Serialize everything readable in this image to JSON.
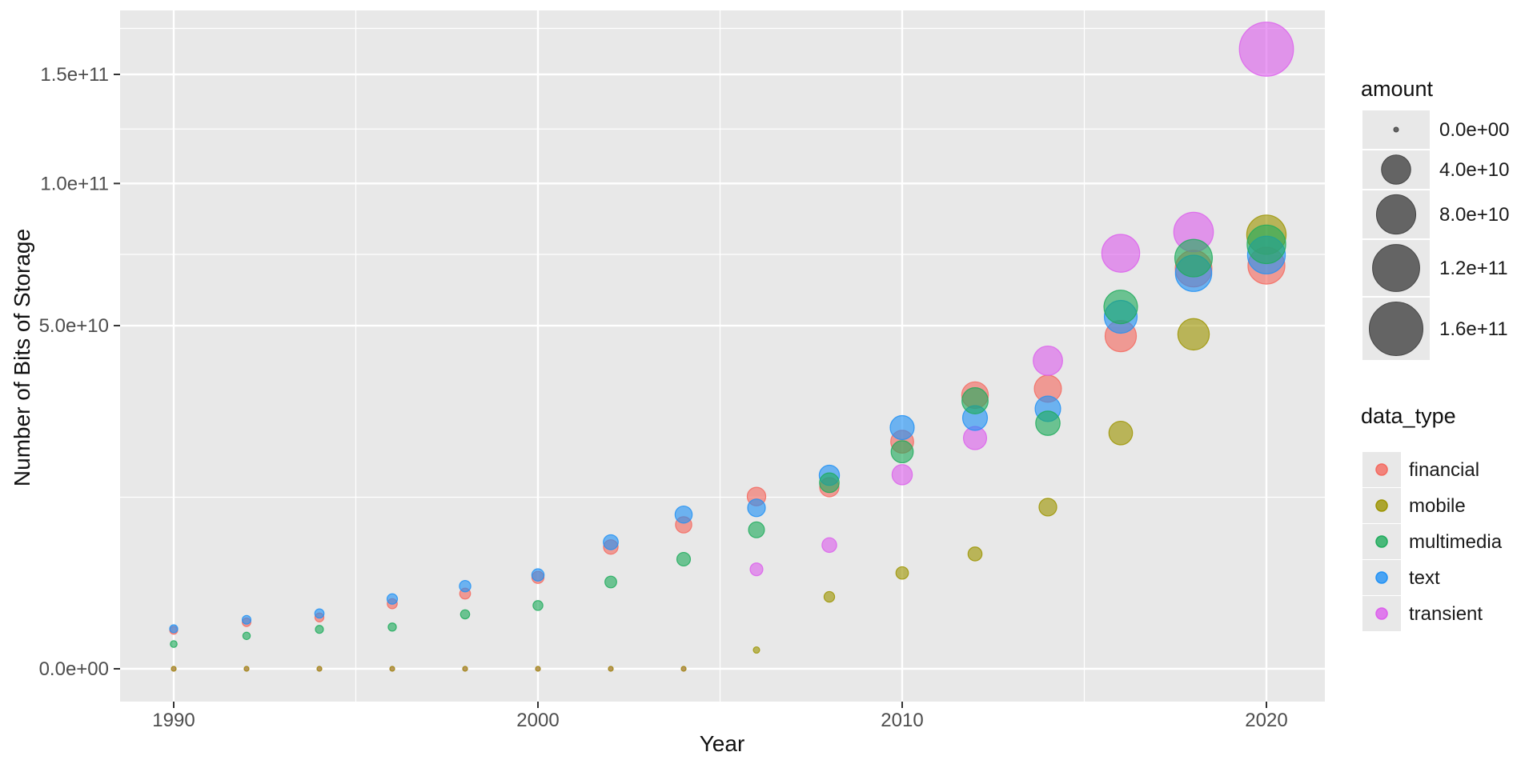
{
  "chart_data": {
    "type": "bubble",
    "xlabel": "Year",
    "ylabel": "Number of Bits of Storage",
    "y_scale": "sqrt",
    "x": [
      1990,
      1992,
      1994,
      1996,
      1998,
      2000,
      2002,
      2004,
      2006,
      2008,
      2010,
      2012,
      2014,
      2016,
      2018,
      2020
    ],
    "x_ticks": [
      {
        "value": 1990,
        "label": "1990"
      },
      {
        "value": 2000,
        "label": "2000"
      },
      {
        "value": 2010,
        "label": "2010"
      },
      {
        "value": 2020,
        "label": "2020"
      }
    ],
    "x_minor": [
      1995,
      2005,
      2015
    ],
    "y_ticks": [
      {
        "value": 0,
        "label": "0.0e+00"
      },
      {
        "value": 50000000000.0,
        "label": "5.0e+10"
      },
      {
        "value": 100000000000.0,
        "label": "1.0e+11"
      },
      {
        "value": 150000000000.0,
        "label": "1.5e+11"
      }
    ],
    "y_minor_values": [
      12500000000.0,
      72900000000.0,
      123700000000.0,
      174100000000.0
    ],
    "ylim": [
      0,
      185000000000.0
    ],
    "grid": true,
    "panel_color": "#E8E8E8",
    "grid_color": "#FFFFFF",
    "series": [
      {
        "name": "financial",
        "color": "#F4695F",
        "values": [
          630000000.0,
          920000000.0,
          1120000000.0,
          1800000000.0,
          2400000000.0,
          3550000000.0,
          6300000000.0,
          8800000000.0,
          12600000000.0,
          14000000000.0,
          21900000000.0,
          31800000000.0,
          33300000000.0,
          47000000000.0,
          68000000000.0,
          69000000000.0
        ]
      },
      {
        "name": "mobile",
        "color": "#9C9400",
        "values": [
          0,
          0,
          0,
          0,
          0,
          0,
          0,
          0,
          150000000.0,
          2200000000.0,
          3900000000.0,
          5600000000.0,
          11100000000.0,
          23600000000.0,
          47500000000.0,
          80000000000.0
        ]
      },
      {
        "name": "multimedia",
        "color": "#1FAB5C",
        "values": [
          260000000.0,
          460000000.0,
          660000000.0,
          740000000.0,
          1260000000.0,
          1700000000.0,
          3200000000.0,
          5100000000.0,
          8200000000.0,
          14700000000.0,
          20000000000.0,
          30500000000.0,
          25600000000.0,
          55600000000.0,
          71600000000.0,
          76500000000.0
        ]
      },
      {
        "name": "text",
        "color": "#2091F5",
        "values": [
          680000000.0,
          1020000000.0,
          1300000000.0,
          2070000000.0,
          2900000000.0,
          3740000000.0,
          6800000000.0,
          10100000000.0,
          11000000000.0,
          15900000000.0,
          24700000000.0,
          26700000000.0,
          28700000000.0,
          52600000000.0,
          66400000000.0,
          72700000000.0
        ]
      },
      {
        "name": "transient",
        "color": "#DC5FEC",
        "values": [
          0,
          0,
          0,
          0,
          0,
          0,
          0,
          0,
          4200000000.0,
          6500000000.0,
          16000000000.0,
          22600000000.0,
          40300000000.0,
          73300000000.0,
          81000000000.0,
          163000000000.0
        ]
      }
    ],
    "draw_order": [
      "financial",
      "transient",
      "mobile",
      "text",
      "multimedia"
    ],
    "point_alpha": 0.62,
    "size_legend": {
      "title": "amount",
      "max_value": 160000000000.0,
      "key_color": "#646464",
      "entries": [
        {
          "label": "0.0e+00",
          "value": 0
        },
        {
          "label": "4.0e+10",
          "value": 40000000000.0
        },
        {
          "label": "8.0e+10",
          "value": 80000000000.0
        },
        {
          "label": "1.2e+11",
          "value": 120000000000.0
        },
        {
          "label": "1.6e+11",
          "value": 160000000000.0
        }
      ]
    },
    "color_legend": {
      "title": "data_type",
      "entries": [
        {
          "label": "financial",
          "color": "#F4695F"
        },
        {
          "label": "mobile",
          "color": "#9C9400"
        },
        {
          "label": "multimedia",
          "color": "#1FAB5C"
        },
        {
          "label": "text",
          "color": "#2091F5"
        },
        {
          "label": "transient",
          "color": "#DC5FEC"
        }
      ]
    }
  }
}
